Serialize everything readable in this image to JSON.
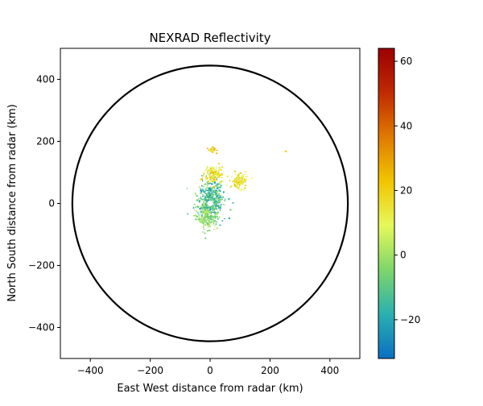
{
  "chart_data": {
    "type": "heatmap",
    "title": "NEXRAD Reflectivity",
    "xlabel": "East West distance from radar (km)",
    "ylabel": "North South distance from radar (km)",
    "xlim": [
      -500,
      500
    ],
    "ylim": [
      -500,
      500
    ],
    "x_ticks": [
      -400,
      -200,
      0,
      200,
      400
    ],
    "y_ticks": [
      -400,
      -200,
      0,
      200,
      400
    ],
    "colorbar": {
      "range": [
        -32,
        64
      ],
      "ticks": [
        -20,
        0,
        20,
        40,
        60
      ],
      "colors": [
        "#0a6fc2",
        "#2ab0b0",
        "#7ed66a",
        "#e6f85a",
        "#f2c500",
        "#e07a00",
        "#c02a00",
        "#9b0000"
      ]
    },
    "range_ring": {
      "center": [
        0,
        0
      ],
      "radius_km": 460
    },
    "echo_clusters": [
      {
        "region": "center",
        "x": 0,
        "y": 15,
        "spread_x": 45,
        "spread_y": 60,
        "n": 420,
        "dbz": [
          -25,
          0
        ]
      },
      {
        "region": "south",
        "x": -15,
        "y": -45,
        "spread_x": 35,
        "spread_y": 40,
        "n": 160,
        "dbz": [
          -10,
          5
        ]
      },
      {
        "region": "north",
        "x": 10,
        "y": 95,
        "spread_x": 30,
        "spread_y": 30,
        "n": 130,
        "dbz": [
          5,
          25
        ]
      },
      {
        "region": "northeast",
        "x": 95,
        "y": 75,
        "spread_x": 25,
        "spread_y": 25,
        "n": 110,
        "dbz": [
          5,
          25
        ]
      },
      {
        "region": "far-north",
        "x": 5,
        "y": 175,
        "spread_x": 15,
        "spread_y": 10,
        "n": 30,
        "dbz": [
          10,
          35
        ]
      },
      {
        "region": "isolated-east",
        "x": 250,
        "y": 170,
        "spread_x": 3,
        "spread_y": 3,
        "n": 3,
        "dbz": [
          15,
          20
        ]
      }
    ],
    "colors": {
      "ring": "#000000",
      "echo_core": "#ffffff"
    }
  }
}
